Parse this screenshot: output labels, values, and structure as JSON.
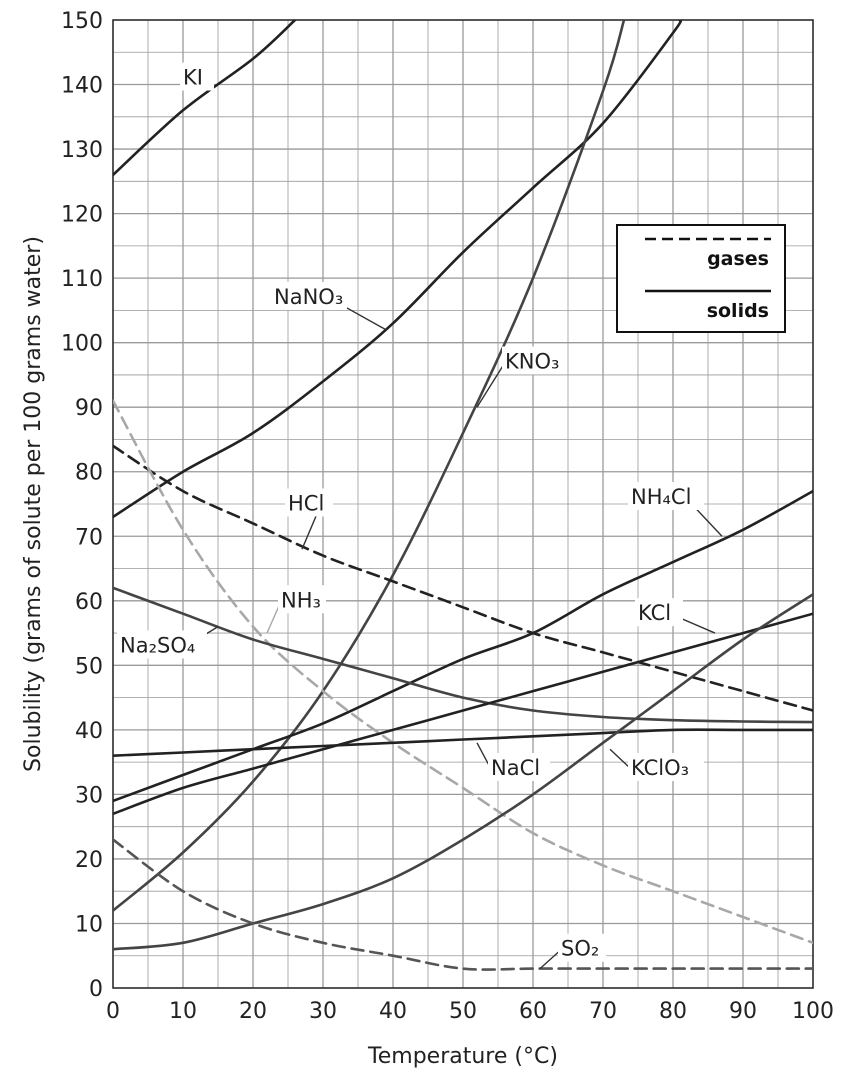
{
  "chart_data": {
    "type": "line",
    "xlabel": "Temperature (°C)",
    "ylabel": "Solubility (grams of solute per 100 grams water)",
    "xlim": [
      0,
      100
    ],
    "ylim": [
      0,
      150
    ],
    "x_ticks": [
      0,
      10,
      20,
      30,
      40,
      50,
      60,
      70,
      80,
      90,
      100
    ],
    "y_ticks": [
      0,
      10,
      20,
      30,
      40,
      50,
      60,
      70,
      80,
      90,
      100,
      110,
      120,
      130,
      140,
      150
    ],
    "grid": true,
    "legend": {
      "placement": "top-right",
      "entries": [
        {
          "label": "gases",
          "style": "dashed"
        },
        {
          "label": "solids",
          "style": "solid"
        }
      ]
    },
    "series": [
      {
        "name": "KI",
        "state": "solid",
        "color": "#222222",
        "points": [
          [
            0,
            126
          ],
          [
            10,
            136
          ],
          [
            20,
            144
          ],
          [
            26,
            150
          ]
        ],
        "label": {
          "text": "KI",
          "lx": 10,
          "ly": 140,
          "ax": 13,
          "ay": 140
        }
      },
      {
        "name": "NaNO₃",
        "state": "solid",
        "color": "#222222",
        "points": [
          [
            0,
            73
          ],
          [
            10,
            80
          ],
          [
            20,
            86
          ],
          [
            30,
            94
          ],
          [
            40,
            103
          ],
          [
            50,
            114
          ],
          [
            60,
            124
          ],
          [
            70,
            134
          ],
          [
            80,
            148
          ],
          [
            81,
            150
          ]
        ],
        "label": {
          "text": "NaNO₃",
          "lx": 23,
          "ly": 106,
          "ax": 39,
          "ay": 102
        }
      },
      {
        "name": "KNO₃",
        "state": "solid",
        "color": "#444444",
        "points": [
          [
            0,
            12
          ],
          [
            10,
            21
          ],
          [
            20,
            32
          ],
          [
            30,
            46
          ],
          [
            40,
            64
          ],
          [
            50,
            86
          ],
          [
            60,
            110
          ],
          [
            70,
            139
          ],
          [
            73,
            150
          ]
        ],
        "label": {
          "text": "KNO₃",
          "lx": 56,
          "ly": 96,
          "ax": 52,
          "ay": 90
        }
      },
      {
        "name": "HCl",
        "state": "gas",
        "color": "#222222",
        "points": [
          [
            0,
            84
          ],
          [
            10,
            77
          ],
          [
            20,
            72
          ],
          [
            30,
            67
          ],
          [
            40,
            63
          ],
          [
            50,
            59
          ],
          [
            60,
            55
          ],
          [
            70,
            52
          ],
          [
            80,
            49
          ],
          [
            90,
            46
          ],
          [
            100,
            43
          ]
        ],
        "label": {
          "text": "HCl",
          "lx": 25,
          "ly": 74,
          "ax": 27,
          "ay": 68
        }
      },
      {
        "name": "NH₃",
        "state": "gas",
        "color": "#a8a8a8",
        "points": [
          [
            0,
            91
          ],
          [
            10,
            71
          ],
          [
            20,
            56
          ],
          [
            30,
            46
          ],
          [
            40,
            38
          ],
          [
            50,
            31
          ],
          [
            60,
            24
          ],
          [
            70,
            19
          ],
          [
            80,
            15
          ],
          [
            90,
            11
          ],
          [
            100,
            7
          ]
        ],
        "label": {
          "text": "NH₃",
          "lx": 24,
          "ly": 59,
          "ax": 22,
          "ay": 55
        }
      },
      {
        "name": "NH₄Cl",
        "state": "solid",
        "color": "#222222",
        "points": [
          [
            0,
            29
          ],
          [
            10,
            33
          ],
          [
            20,
            37
          ],
          [
            30,
            41
          ],
          [
            40,
            46
          ],
          [
            50,
            51
          ],
          [
            60,
            55
          ],
          [
            70,
            61
          ],
          [
            80,
            66
          ],
          [
            90,
            71
          ],
          [
            100,
            77
          ]
        ],
        "label": {
          "text": "NH₄Cl",
          "lx": 74,
          "ly": 75,
          "ax": 87,
          "ay": 70
        }
      },
      {
        "name": "Na₂SO₄",
        "state": "solid",
        "color": "#444444",
        "points": [
          [
            0,
            62
          ],
          [
            10,
            58
          ],
          [
            20,
            54
          ],
          [
            30,
            51
          ],
          [
            40,
            48
          ],
          [
            50,
            45
          ],
          [
            60,
            43
          ],
          [
            70,
            42
          ],
          [
            80,
            41.5
          ],
          [
            90,
            41.3
          ],
          [
            100,
            41.2
          ]
        ],
        "label": {
          "text": "Na₂SO₄",
          "lx": 1,
          "ly": 52,
          "ax": 15,
          "ay": 56
        }
      },
      {
        "name": "KCl",
        "state": "solid",
        "color": "#222222",
        "points": [
          [
            0,
            27
          ],
          [
            10,
            31
          ],
          [
            20,
            34
          ],
          [
            30,
            37
          ],
          [
            40,
            40
          ],
          [
            50,
            43
          ],
          [
            60,
            46
          ],
          [
            70,
            49
          ],
          [
            80,
            52
          ],
          [
            90,
            55
          ],
          [
            100,
            58
          ]
        ],
        "label": {
          "text": "KCl",
          "lx": 75,
          "ly": 57,
          "ax": 86,
          "ay": 55
        }
      },
      {
        "name": "NaCl",
        "state": "solid",
        "color": "#222222",
        "points": [
          [
            0,
            36
          ],
          [
            10,
            36.5
          ],
          [
            20,
            37
          ],
          [
            30,
            37.5
          ],
          [
            40,
            38
          ],
          [
            50,
            38.5
          ],
          [
            60,
            39
          ],
          [
            70,
            39.5
          ],
          [
            80,
            40
          ],
          [
            90,
            40
          ],
          [
            100,
            40
          ]
        ],
        "label": {
          "text": "NaCl",
          "lx": 54,
          "ly": 33,
          "ax": 52,
          "ay": 38
        }
      },
      {
        "name": "KClO₃",
        "state": "solid",
        "color": "#444444",
        "points": [
          [
            0,
            6
          ],
          [
            10,
            7
          ],
          [
            20,
            10
          ],
          [
            30,
            13
          ],
          [
            40,
            17
          ],
          [
            50,
            23
          ],
          [
            60,
            30
          ],
          [
            70,
            38
          ],
          [
            80,
            46
          ],
          [
            90,
            54
          ],
          [
            100,
            61
          ]
        ],
        "label": {
          "text": "KClO₃",
          "lx": 74,
          "ly": 33,
          "ax": 71,
          "ay": 37
        }
      },
      {
        "name": "SO₂",
        "state": "gas",
        "color": "#555555",
        "points": [
          [
            0,
            23
          ],
          [
            10,
            15
          ],
          [
            20,
            10
          ],
          [
            30,
            7
          ],
          [
            40,
            5
          ],
          [
            50,
            3
          ],
          [
            60,
            3
          ],
          [
            70,
            3
          ],
          [
            80,
            3
          ],
          [
            90,
            3
          ],
          [
            100,
            3
          ]
        ],
        "label": {
          "text": "SO₂",
          "lx": 64,
          "ly": 5,
          "ax": 61,
          "ay": 3
        }
      }
    ]
  }
}
